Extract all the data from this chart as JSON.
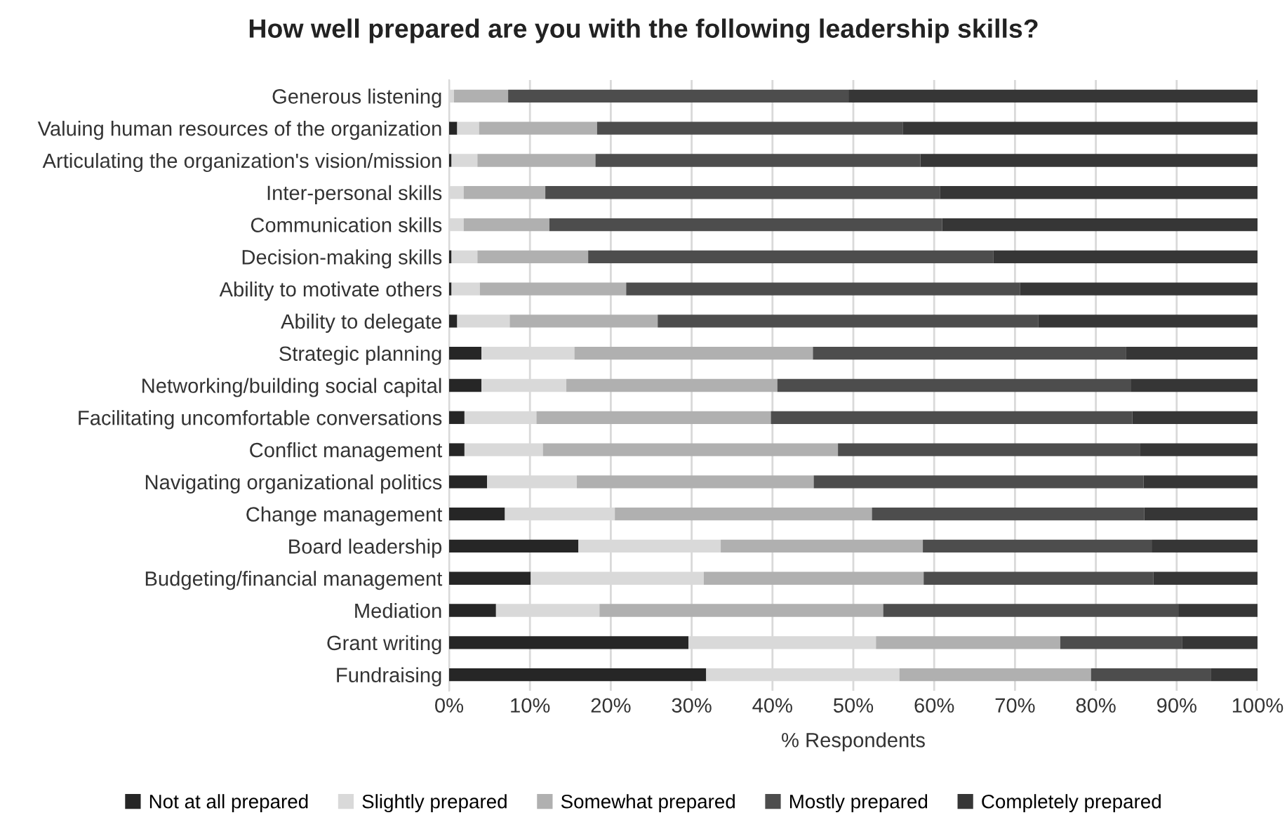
{
  "chart_data": {
    "type": "bar",
    "orientation": "horizontal",
    "stacked": true,
    "title": "How well prepared are you with the following leadership skills?",
    "xlabel": "% Respondents",
    "categories": [
      "Generous listening",
      "Valuing human resources of the organization",
      "Articulating the organization's vision/mission",
      "Inter-personal skills",
      "Communication skills",
      "Decision-making skills",
      "Ability to motivate others",
      "Ability to delegate",
      "Strategic planning",
      "Networking/building social capital",
      "Facilitating uncomfortable conversations",
      "Conflict management",
      "Navigating organizational politics",
      "Change management",
      "Board leadership",
      "Budgeting/financial management",
      "Mediation",
      "Grant writing",
      "Fundraising"
    ],
    "series": [
      {
        "name": "Not at all prepared",
        "color": "#262626",
        "values": [
          0,
          1.0,
          0.3,
          0,
          0,
          0.3,
          0.3,
          1.0,
          4.0,
          4.0,
          1.9,
          1.9,
          4.7,
          6.9,
          16.0,
          10.1,
          5.8,
          29.6,
          31.8
        ]
      },
      {
        "name": "Slightly prepared",
        "color": "#d9d9d9",
        "values": [
          0.6,
          2.7,
          3.2,
          1.8,
          1.8,
          3.2,
          3.5,
          6.5,
          11.5,
          10.5,
          8.9,
          9.7,
          11.1,
          13.6,
          17.6,
          21.4,
          12.8,
          23.2,
          23.9
        ]
      },
      {
        "name": "Somewhat prepared",
        "color": "#b0b0b0",
        "values": [
          6.7,
          14.6,
          14.6,
          10.1,
          10.6,
          13.7,
          18.1,
          18.3,
          29.5,
          26.1,
          29.0,
          36.5,
          29.3,
          31.8,
          25.0,
          27.2,
          35.1,
          22.8,
          23.7
        ]
      },
      {
        "name": "Mostly prepared",
        "color": "#4d4d4d",
        "values": [
          42.1,
          37.8,
          40.2,
          48.8,
          48.6,
          50.1,
          48.7,
          47.1,
          38.7,
          43.7,
          44.7,
          37.4,
          40.8,
          33.7,
          28.3,
          28.4,
          36.5,
          15.1,
          14.8
        ]
      },
      {
        "name": "Completely prepared",
        "color": "#363636",
        "values": [
          50.6,
          43.9,
          41.7,
          39.3,
          39.0,
          32.7,
          29.4,
          27.1,
          16.3,
          15.7,
          15.5,
          14.5,
          14.1,
          14.0,
          13.1,
          12.9,
          9.8,
          9.3,
          5.8
        ]
      }
    ],
    "xlim": [
      0,
      100
    ],
    "xticks": [
      {
        "value": 0,
        "label": "0%"
      },
      {
        "value": 10,
        "label": "10%"
      },
      {
        "value": 20,
        "label": "20%"
      },
      {
        "value": 30,
        "label": "30%"
      },
      {
        "value": 40,
        "label": "40%"
      },
      {
        "value": 50,
        "label": "50%"
      },
      {
        "value": 60,
        "label": "60%"
      },
      {
        "value": 70,
        "label": "70%"
      },
      {
        "value": 80,
        "label": "80%"
      },
      {
        "value": 90,
        "label": "90%"
      },
      {
        "value": 100,
        "label": "100%"
      }
    ],
    "grid": "x",
    "legend": "bottom"
  }
}
